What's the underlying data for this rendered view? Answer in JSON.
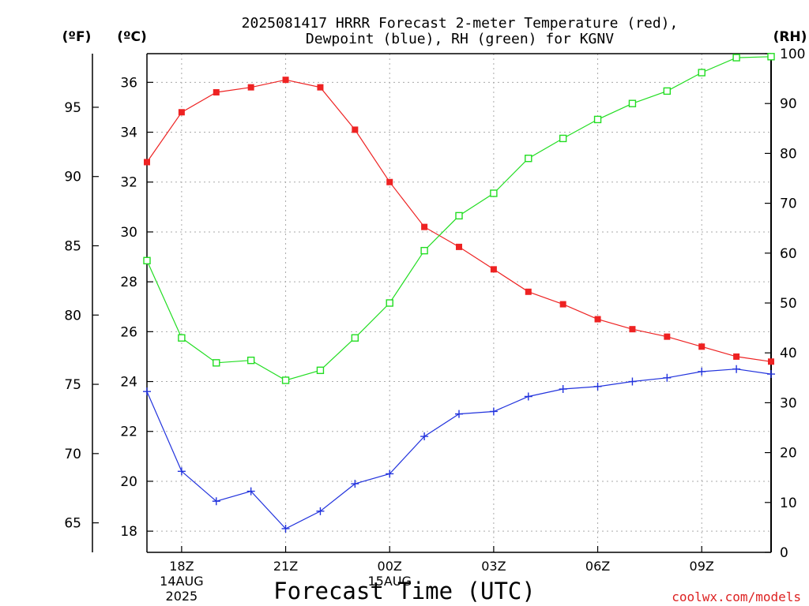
{
  "chart_data": {
    "type": "line",
    "title_line1": "2025081417 HRRR Forecast 2-meter Temperature (red),",
    "title_line2": "Dewpoint (blue), RH (green) for KGNV",
    "xlabel": "Forecast Time (UTC)",
    "credit": "coolwx.com/models",
    "left_outer_axis": {
      "label": "(ºF)",
      "ticks": [
        "65",
        "70",
        "75",
        "80",
        "85",
        "90",
        "95"
      ]
    },
    "left_axis": {
      "label": "(ºC)",
      "ticks": [
        "18",
        "20",
        "22",
        "24",
        "26",
        "28",
        "30",
        "32",
        "34",
        "36"
      ],
      "ylim": [
        17.15,
        37.15
      ]
    },
    "right_axis": {
      "label": "(RH)",
      "ticks": [
        "0",
        "10",
        "20",
        "30",
        "40",
        "50",
        "60",
        "70",
        "80",
        "90",
        "100"
      ],
      "ylim": [
        0,
        100
      ]
    },
    "x_ticks": [
      {
        "hour": 18,
        "label": "18Z",
        "sub1": "14AUG",
        "sub2": "2025"
      },
      {
        "hour": 21,
        "label": "21Z",
        "sub1": "",
        "sub2": ""
      },
      {
        "hour": 24,
        "label": "00Z",
        "sub1": "15AUG",
        "sub2": ""
      },
      {
        "hour": 27,
        "label": "03Z",
        "sub1": "",
        "sub2": ""
      },
      {
        "hour": 30,
        "label": "06Z",
        "sub1": "",
        "sub2": ""
      },
      {
        "hour": 33,
        "label": "09Z",
        "sub1": "",
        "sub2": ""
      }
    ],
    "x_hours": [
      17,
      18,
      19,
      20,
      21,
      22,
      23,
      24,
      25,
      26,
      27,
      28,
      29,
      30,
      31,
      32,
      33,
      34,
      35
    ],
    "xlim": [
      17,
      35
    ],
    "grid": true,
    "series": [
      {
        "name": "Temperature",
        "color": "#ee2222",
        "marker": "filled-square",
        "axis": "C",
        "values": [
          32.8,
          34.8,
          35.6,
          35.8,
          36.1,
          35.8,
          34.1,
          32.0,
          30.2,
          29.4,
          28.5,
          27.6,
          27.1,
          26.5,
          26.1,
          25.8,
          25.4,
          25.0,
          24.8
        ]
      },
      {
        "name": "Dewpoint",
        "color": "#2233dd",
        "marker": "plus",
        "axis": "C",
        "values": [
          23.6,
          20.4,
          19.2,
          19.6,
          18.1,
          18.8,
          19.9,
          20.3,
          21.8,
          22.7,
          22.8,
          23.4,
          23.7,
          23.8,
          24.0,
          24.15,
          24.4,
          24.5,
          24.3
        ]
      },
      {
        "name": "RH",
        "color": "#22dd22",
        "marker": "open-square",
        "axis": "RH",
        "values": [
          58.5,
          43.0,
          38.0,
          38.5,
          34.5,
          36.5,
          43.0,
          50.0,
          60.5,
          67.5,
          72.0,
          79.0,
          83.0,
          86.8,
          90.0,
          92.5,
          96.2,
          99.2,
          99.4
        ]
      }
    ]
  }
}
